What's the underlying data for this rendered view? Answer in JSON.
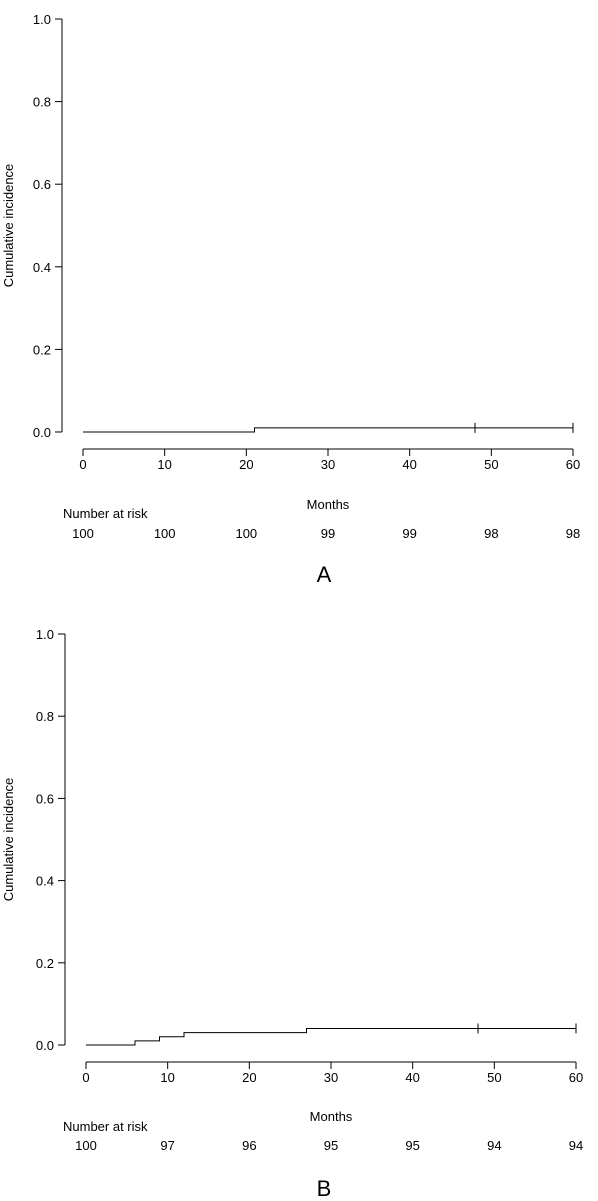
{
  "chart_data": [
    {
      "type": "line",
      "panel_label": "A",
      "xlabel": "Months",
      "ylabel": "Cumulative incidence",
      "xlim": [
        0,
        60
      ],
      "ylim": [
        0,
        1
      ],
      "x_ticks": [
        0,
        10,
        20,
        30,
        40,
        50,
        60
      ],
      "y_ticks": [
        "0.0",
        "0.2",
        "0.4",
        "0.6",
        "0.8",
        "1.0"
      ],
      "step": [
        {
          "x": 0,
          "y": 0
        },
        {
          "x": 21,
          "y": 0.01
        },
        {
          "x": 60,
          "y": 0.01
        }
      ],
      "censor_marks": [
        {
          "x": 48,
          "y": 0.01
        },
        {
          "x": 60,
          "y": 0.01
        }
      ],
      "risk_table": {
        "label": "Number at risk",
        "times": [
          0,
          10,
          20,
          30,
          40,
          50,
          60
        ],
        "values": [
          "100",
          "100",
          "100",
          "99",
          "99",
          "98",
          "98"
        ]
      }
    },
    {
      "type": "line",
      "panel_label": "B",
      "xlabel": "Months",
      "ylabel": "Cumulative incidence",
      "xlim": [
        0,
        60
      ],
      "ylim": [
        0,
        1
      ],
      "x_ticks": [
        0,
        10,
        20,
        30,
        40,
        50,
        60
      ],
      "y_ticks": [
        "0.0",
        "0.2",
        "0.4",
        "0.6",
        "0.8",
        "1.0"
      ],
      "step": [
        {
          "x": 0,
          "y": 0
        },
        {
          "x": 6,
          "y": 0.01
        },
        {
          "x": 9,
          "y": 0.02
        },
        {
          "x": 12,
          "y": 0.03
        },
        {
          "x": 27,
          "y": 0.04
        },
        {
          "x": 60,
          "y": 0.04
        }
      ],
      "censor_marks": [
        {
          "x": 48,
          "y": 0.04
        },
        {
          "x": 60,
          "y": 0.04
        }
      ],
      "risk_table": {
        "label": "Number at risk",
        "times": [
          0,
          10,
          20,
          30,
          40,
          50,
          60
        ],
        "values": [
          "100",
          "97",
          "96",
          "95",
          "95",
          "94",
          "94"
        ]
      }
    }
  ]
}
